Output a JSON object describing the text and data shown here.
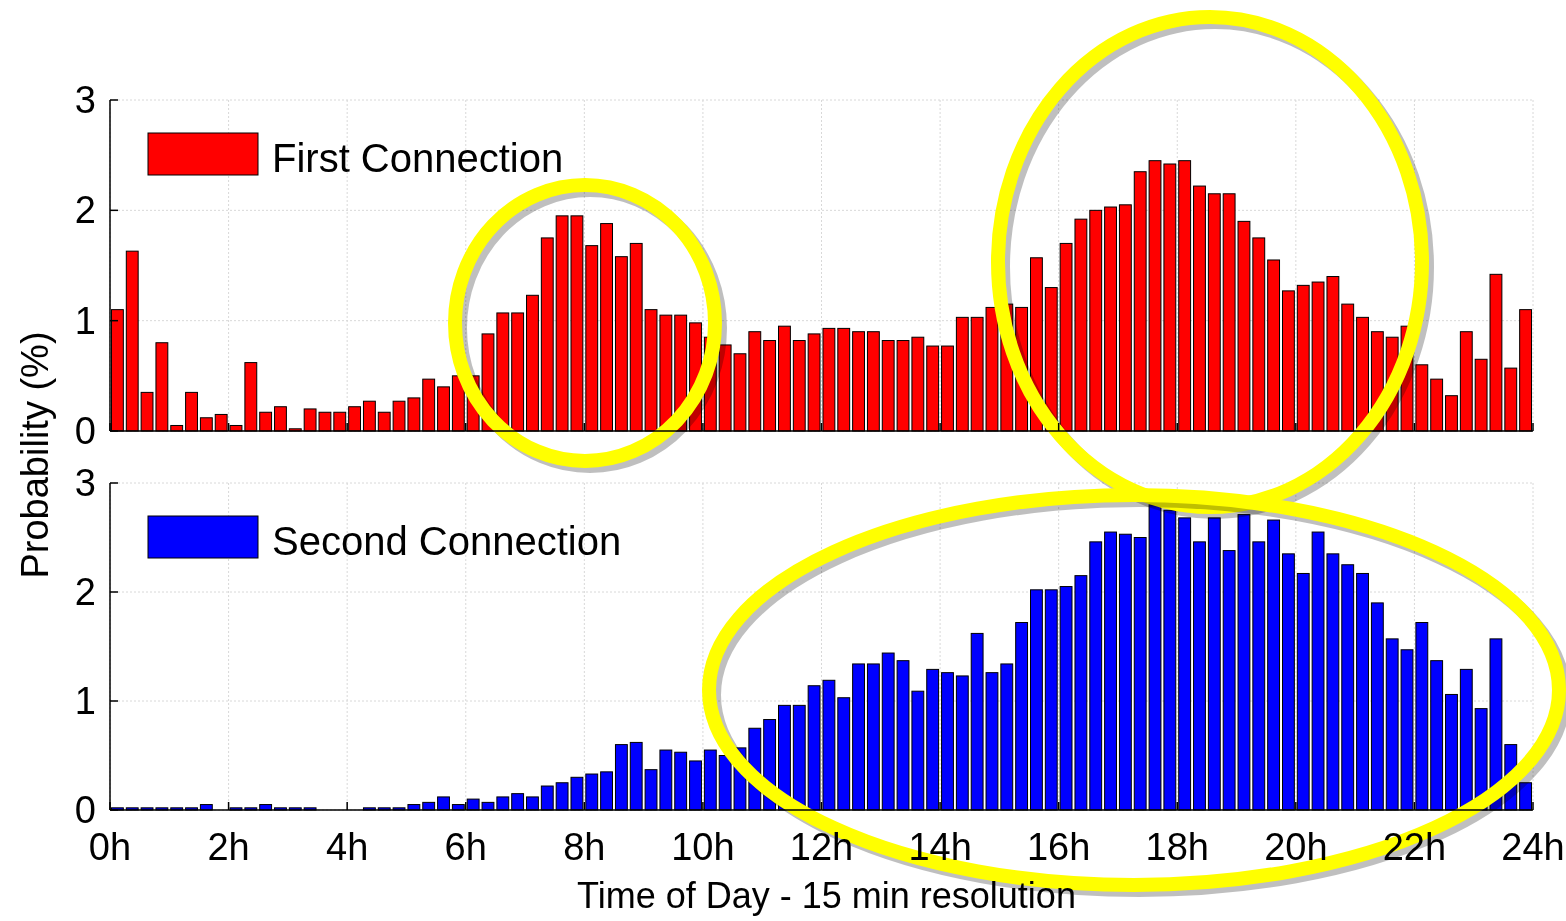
{
  "chart_data": [
    {
      "type": "bar",
      "ylabel": "Probability (%)",
      "x": [
        0.125,
        0.375,
        0.625,
        0.875,
        1.125,
        1.375,
        1.625,
        1.875,
        2.125,
        2.375,
        2.625,
        2.875,
        3.125,
        3.375,
        3.625,
        3.875,
        4.125,
        4.375,
        4.625,
        4.875,
        5.125,
        5.375,
        5.625,
        5.875,
        6.125,
        6.375,
        6.625,
        6.875,
        7.125,
        7.375,
        7.625,
        7.875,
        8.125,
        8.375,
        8.625,
        8.875,
        9.125,
        9.375,
        9.625,
        9.875,
        10.125,
        10.375,
        10.625,
        10.875,
        11.125,
        11.375,
        11.625,
        11.875,
        12.125,
        12.375,
        12.625,
        12.875,
        13.125,
        13.375,
        13.625,
        13.875,
        14.125,
        14.375,
        14.625,
        14.875,
        15.125,
        15.375,
        15.625,
        15.875,
        16.125,
        16.375,
        16.625,
        16.875,
        17.125,
        17.375,
        17.625,
        17.875,
        18.125,
        18.375,
        18.625,
        18.875,
        19.125,
        19.375,
        19.625,
        19.875,
        20.125,
        20.375,
        20.625,
        20.875,
        21.125,
        21.375,
        21.625,
        21.875,
        22.125,
        22.375,
        22.625,
        22.875,
        23.125,
        23.375,
        23.625,
        23.875
      ],
      "series": [
        {
          "name": "First Connection",
          "color": "#ff0000",
          "values": [
            1.1,
            1.63,
            0.35,
            0.8,
            0.05,
            0.35,
            0.12,
            0.15,
            0.05,
            0.62,
            0.17,
            0.22,
            0.02,
            0.2,
            0.17,
            0.17,
            0.22,
            0.27,
            0.17,
            0.27,
            0.3,
            0.47,
            0.4,
            0.5,
            0.5,
            0.88,
            1.07,
            1.07,
            1.23,
            1.75,
            1.95,
            1.95,
            1.68,
            1.88,
            1.58,
            1.7,
            1.1,
            1.05,
            1.05,
            0.98,
            0.85,
            0.78,
            0.7,
            0.9,
            0.82,
            0.95,
            0.82,
            0.88,
            0.93,
            0.93,
            0.9,
            0.9,
            0.82,
            0.82,
            0.85,
            0.77,
            0.77,
            1.03,
            1.03,
            1.12,
            1.15,
            1.12,
            1.57,
            1.3,
            1.7,
            1.92,
            2.0,
            2.03,
            2.05,
            2.35,
            2.45,
            2.42,
            2.45,
            2.22,
            2.15,
            2.15,
            1.9,
            1.75,
            1.55,
            1.27,
            1.32,
            1.35,
            1.4,
            1.15,
            1.03,
            0.9,
            0.85,
            0.95,
            0.6,
            0.47,
            0.32,
            0.9,
            0.65,
            1.42,
            0.57,
            1.1
          ]
        }
      ],
      "xlim": [
        0,
        24
      ],
      "xticks": [
        {
          "value": 0,
          "label": null
        },
        {
          "value": 2,
          "label": null
        },
        {
          "value": 4,
          "label": null
        },
        {
          "value": 6,
          "label": null
        },
        {
          "value": 8,
          "label": null
        },
        {
          "value": 10,
          "label": null
        },
        {
          "value": 12,
          "label": null
        },
        {
          "value": 14,
          "label": null
        },
        {
          "value": 16,
          "label": null
        },
        {
          "value": 18,
          "label": null
        },
        {
          "value": 20,
          "label": null
        },
        {
          "value": 22,
          "label": null
        },
        {
          "value": 24,
          "label": null
        }
      ],
      "ylim": [
        0,
        3
      ],
      "yticks": [
        0,
        1,
        2,
        3
      ],
      "grid": true,
      "legend": "top left",
      "tick_labels": "y"
    },
    {
      "type": "bar",
      "xlabel": "Time of Day - 15 min resolution",
      "x": [
        0.125,
        0.375,
        0.625,
        0.875,
        1.125,
        1.375,
        1.625,
        1.875,
        2.125,
        2.375,
        2.625,
        2.875,
        3.125,
        3.375,
        3.625,
        3.875,
        4.125,
        4.375,
        4.625,
        4.875,
        5.125,
        5.375,
        5.625,
        5.875,
        6.125,
        6.375,
        6.625,
        6.875,
        7.125,
        7.375,
        7.625,
        7.875,
        8.125,
        8.375,
        8.625,
        8.875,
        9.125,
        9.375,
        9.625,
        9.875,
        10.125,
        10.375,
        10.625,
        10.875,
        11.125,
        11.375,
        11.625,
        11.875,
        12.125,
        12.375,
        12.625,
        12.875,
        13.125,
        13.375,
        13.625,
        13.875,
        14.125,
        14.375,
        14.625,
        14.875,
        15.125,
        15.375,
        15.625,
        15.875,
        16.125,
        16.375,
        16.625,
        16.875,
        17.125,
        17.375,
        17.625,
        17.875,
        18.125,
        18.375,
        18.625,
        18.875,
        19.125,
        19.375,
        19.625,
        19.875,
        20.125,
        20.375,
        20.625,
        20.875,
        21.125,
        21.375,
        21.625,
        21.875,
        22.125,
        22.375,
        22.625,
        22.875,
        23.125,
        23.375,
        23.625,
        23.875
      ],
      "series": [
        {
          "name": "Second Connection",
          "color": "#0000ff",
          "values": [
            0.02,
            0.02,
            0.02,
            0.02,
            0.02,
            0.02,
            0.05,
            0,
            0.02,
            0.02,
            0.05,
            0.02,
            0.02,
            0.02,
            0,
            0,
            0,
            0.02,
            0.02,
            0.02,
            0.05,
            0.07,
            0.12,
            0.05,
            0.1,
            0.07,
            0.12,
            0.15,
            0.12,
            0.22,
            0.25,
            0.3,
            0.33,
            0.35,
            0.6,
            0.62,
            0.37,
            0.55,
            0.53,
            0.45,
            0.55,
            0.5,
            0.57,
            0.75,
            0.83,
            0.96,
            0.96,
            1.14,
            1.19,
            1.03,
            1.34,
            1.34,
            1.44,
            1.37,
            1.09,
            1.29,
            1.26,
            1.23,
            1.62,
            1.26,
            1.34,
            1.72,
            2.02,
            2.02,
            2.05,
            2.15,
            2.46,
            2.55,
            2.53,
            2.5,
            2.8,
            2.75,
            2.68,
            2.46,
            2.68,
            2.38,
            2.71,
            2.46,
            2.66,
            2.35,
            2.17,
            2.55,
            2.35,
            2.25,
            2.17,
            1.9,
            1.57,
            1.47,
            1.72,
            1.37,
            1.06,
            1.29,
            0.93,
            1.57,
            0.6,
            0.25
          ]
        }
      ],
      "xlim": [
        0,
        24
      ],
      "xticks": [
        {
          "value": 0,
          "label": "0h"
        },
        {
          "value": 2,
          "label": "2h"
        },
        {
          "value": 4,
          "label": "4h"
        },
        {
          "value": 6,
          "label": "6h"
        },
        {
          "value": 8,
          "label": "8h"
        },
        {
          "value": 10,
          "label": "10h"
        },
        {
          "value": 12,
          "label": "12h"
        },
        {
          "value": 14,
          "label": "14h"
        },
        {
          "value": 16,
          "label": "16h"
        },
        {
          "value": 18,
          "label": "18h"
        },
        {
          "value": 20,
          "label": "20h"
        },
        {
          "value": 22,
          "label": "22h"
        },
        {
          "value": 24,
          "label": "24h"
        }
      ],
      "ylim": [
        0,
        3
      ],
      "yticks": [
        0,
        1,
        2,
        3
      ],
      "grid": true,
      "legend": "top left"
    }
  ]
}
